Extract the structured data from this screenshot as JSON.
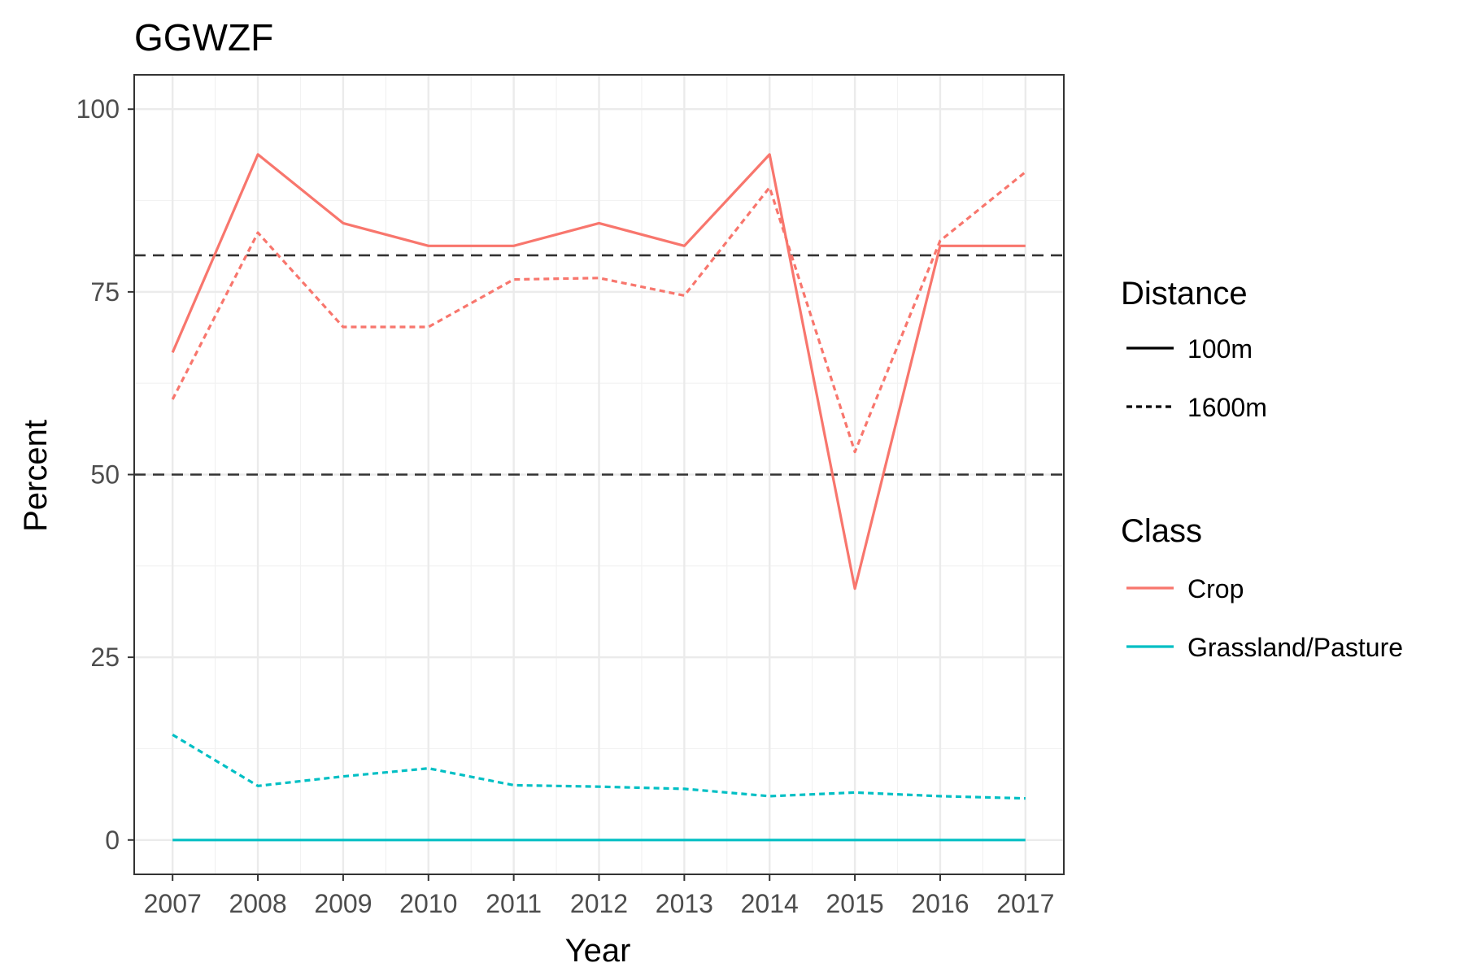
{
  "chart_data": {
    "type": "line",
    "title": "GGWZF",
    "xlabel": "Year",
    "ylabel": "Percent",
    "x": [
      2007,
      2008,
      2009,
      2010,
      2011,
      2012,
      2013,
      2014,
      2015,
      2016,
      2017
    ],
    "xticks": [
      "2007",
      "2008",
      "2009",
      "2010",
      "2011",
      "2012",
      "2013",
      "2014",
      "2015",
      "2016",
      "2017"
    ],
    "yticks": [
      "0",
      "25",
      "50",
      "75",
      "100"
    ],
    "ytick_values": [
      0,
      25,
      50,
      75,
      100
    ],
    "ylim": [
      -4.7,
      104.7
    ],
    "xlim": [
      2006.55,
      2017.45
    ],
    "grid": true,
    "reference_lines": [
      80,
      50
    ],
    "series": [
      {
        "class": "Crop",
        "distance": "100m",
        "color": "#F8766D",
        "dash": "solid",
        "values": [
          66.7,
          93.8,
          84.4,
          81.3,
          81.3,
          84.4,
          81.3,
          93.8,
          34.4,
          81.3,
          81.3
        ]
      },
      {
        "class": "Crop",
        "distance": "1600m",
        "color": "#F8766D",
        "dash": "dotted",
        "values": [
          60.3,
          83.1,
          70.2,
          70.2,
          76.7,
          76.9,
          74.5,
          89.3,
          53.1,
          82.0,
          91.4
        ]
      },
      {
        "class": "Grassland/Pasture",
        "distance": "100m",
        "color": "#00BFC4",
        "dash": "solid",
        "values": [
          0,
          0,
          0,
          0,
          0,
          0,
          0,
          0,
          0,
          0,
          0
        ]
      },
      {
        "class": "Grassland/Pasture",
        "distance": "1600m",
        "color": "#00BFC4",
        "dash": "dotted",
        "values": [
          14.4,
          7.4,
          8.7,
          9.8,
          7.5,
          7.3,
          7.0,
          6.0,
          6.5,
          6.0,
          5.7
        ]
      }
    ],
    "legend": {
      "placement": "right",
      "distance": {
        "title": "Distance",
        "entries": [
          {
            "label": "100m",
            "dash": "solid"
          },
          {
            "label": "1600m",
            "dash": "dotted"
          }
        ]
      },
      "class": {
        "title": "Class",
        "entries": [
          {
            "label": "Crop",
            "color": "#F8766D"
          },
          {
            "label": "Grassland/Pasture",
            "color": "#00BFC4"
          }
        ]
      }
    }
  }
}
